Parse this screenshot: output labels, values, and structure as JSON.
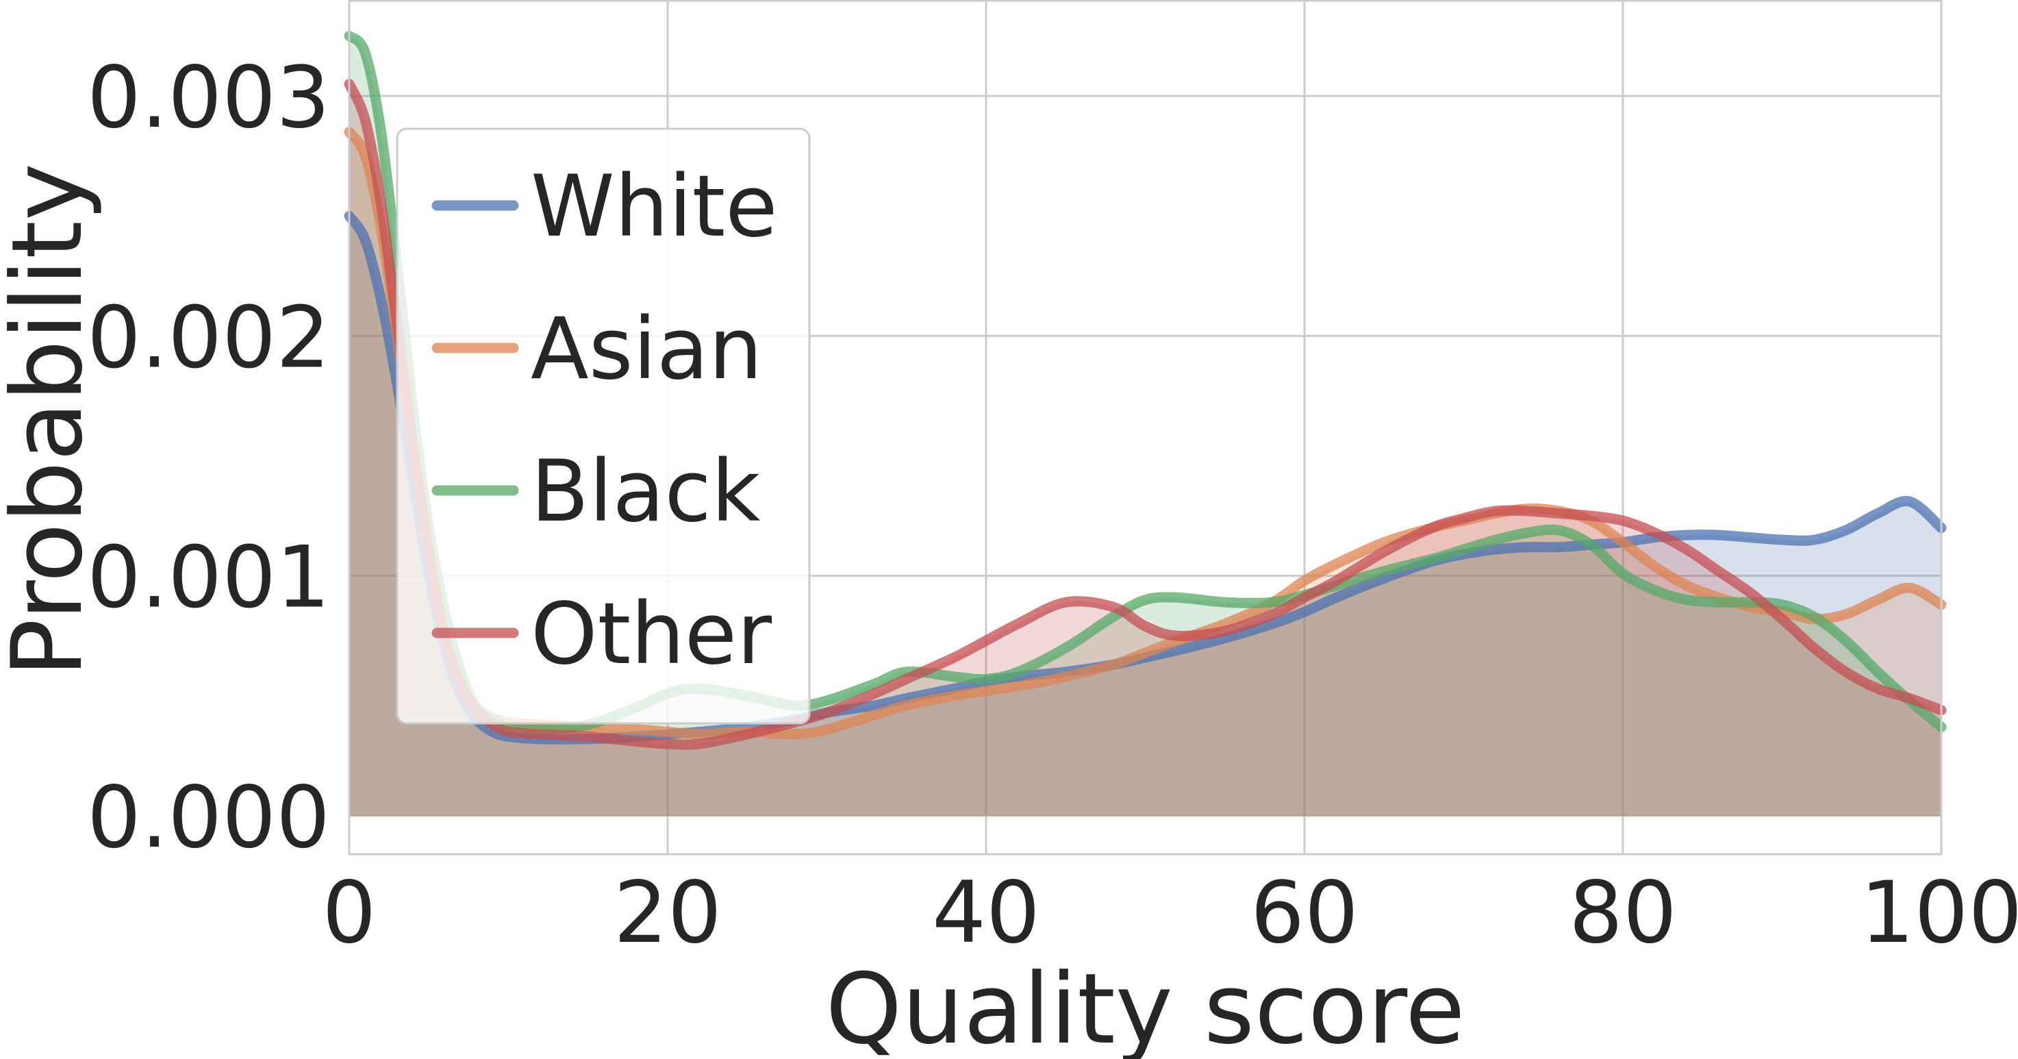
{
  "chart_data": {
    "type": "area",
    "title": "",
    "xlabel": "Quality score",
    "ylabel": "Probability",
    "xlim": [
      0,
      100
    ],
    "ylim": [
      -0.00016,
      0.0034
    ],
    "xticks": [
      0,
      20,
      40,
      60,
      80,
      100
    ],
    "xtick_labels": [
      "0",
      "20",
      "40",
      "60",
      "80",
      "100"
    ],
    "yticks": [
      0.0,
      0.001,
      0.002,
      0.003
    ],
    "ytick_labels": [
      "0.000",
      "0.001",
      "0.002",
      "0.003"
    ],
    "grid": true,
    "legend_position": "upper-left",
    "x": [
      0,
      1,
      2,
      3,
      4,
      5,
      6,
      7,
      8,
      9,
      10,
      12,
      15,
      18,
      20,
      22,
      25,
      28,
      30,
      33,
      35,
      38,
      40,
      42,
      45,
      48,
      50,
      52,
      55,
      58,
      60,
      62,
      65,
      68,
      70,
      72,
      74,
      76,
      78,
      80,
      82,
      84,
      86,
      88,
      90,
      92,
      94,
      96,
      98,
      100
    ],
    "series": [
      {
        "name": "White",
        "color": "#4C72B0",
        "values": [
          0.0025,
          0.0024,
          0.00215,
          0.0018,
          0.0014,
          0.001,
          0.0007,
          0.0005,
          0.0004,
          0.00035,
          0.00033,
          0.00032,
          0.00032,
          0.00033,
          0.00034,
          0.00035,
          0.00037,
          0.0004,
          0.00043,
          0.00046,
          0.00049,
          0.00053,
          0.00056,
          0.00058,
          0.0006,
          0.00063,
          0.00066,
          0.00069,
          0.00074,
          0.0008,
          0.00085,
          0.00091,
          0.00099,
          0.00106,
          0.00109,
          0.00111,
          0.00112,
          0.00112,
          0.00113,
          0.00114,
          0.00116,
          0.00117,
          0.00117,
          0.00116,
          0.00115,
          0.00115,
          0.00119,
          0.00126,
          0.00131,
          0.0012
        ]
      },
      {
        "name": "Asian",
        "color": "#DD8452",
        "values": [
          0.00285,
          0.00275,
          0.00245,
          0.002,
          0.00155,
          0.0011,
          0.00075,
          0.00055,
          0.00045,
          0.00041,
          0.00039,
          0.00038,
          0.00037,
          0.00036,
          0.00035,
          0.00034,
          0.00035,
          0.00034,
          0.00036,
          0.00042,
          0.00046,
          0.0005,
          0.00052,
          0.00054,
          0.00058,
          0.00063,
          0.00068,
          0.00073,
          0.0008,
          0.00089,
          0.00098,
          0.00105,
          0.00114,
          0.0012,
          0.00123,
          0.00126,
          0.00128,
          0.00127,
          0.00123,
          0.00114,
          0.00104,
          0.00096,
          0.00091,
          0.00087,
          0.00085,
          0.00082,
          0.00084,
          0.0009,
          0.00095,
          0.00088
        ]
      },
      {
        "name": "Black",
        "color": "#55A868",
        "values": [
          0.00325,
          0.00318,
          0.00285,
          0.0023,
          0.0017,
          0.0012,
          0.00085,
          0.0006,
          0.00045,
          0.0004,
          0.00037,
          0.00036,
          0.00038,
          0.00045,
          0.00051,
          0.00053,
          0.0005,
          0.00046,
          0.00048,
          0.00055,
          0.0006,
          0.00058,
          0.00057,
          0.0006,
          0.0007,
          0.00083,
          0.0009,
          0.00091,
          0.00089,
          0.00089,
          0.00092,
          0.00096,
          0.00102,
          0.00107,
          0.00111,
          0.00115,
          0.00118,
          0.00119,
          0.00113,
          0.00101,
          0.00094,
          0.0009,
          0.00089,
          0.00089,
          0.00088,
          0.00083,
          0.00073,
          0.0006,
          0.00048,
          0.00037
        ]
      },
      {
        "name": "Other",
        "color": "#C44E52",
        "values": [
          0.00305,
          0.0029,
          0.00255,
          0.00205,
          0.00155,
          0.0011,
          0.00075,
          0.00055,
          0.00044,
          0.00038,
          0.00035,
          0.00034,
          0.00033,
          0.00031,
          0.0003,
          0.0003,
          0.00034,
          0.00039,
          0.00043,
          0.00051,
          0.00057,
          0.00066,
          0.00073,
          0.0008,
          0.00089,
          0.00087,
          0.00079,
          0.00075,
          0.00077,
          0.00084,
          0.00091,
          0.00098,
          0.0011,
          0.0012,
          0.00124,
          0.00127,
          0.00127,
          0.00126,
          0.00125,
          0.00123,
          0.00118,
          0.00111,
          0.00102,
          0.00093,
          0.00082,
          0.0007,
          0.0006,
          0.00053,
          0.00049,
          0.00044
        ]
      }
    ]
  }
}
